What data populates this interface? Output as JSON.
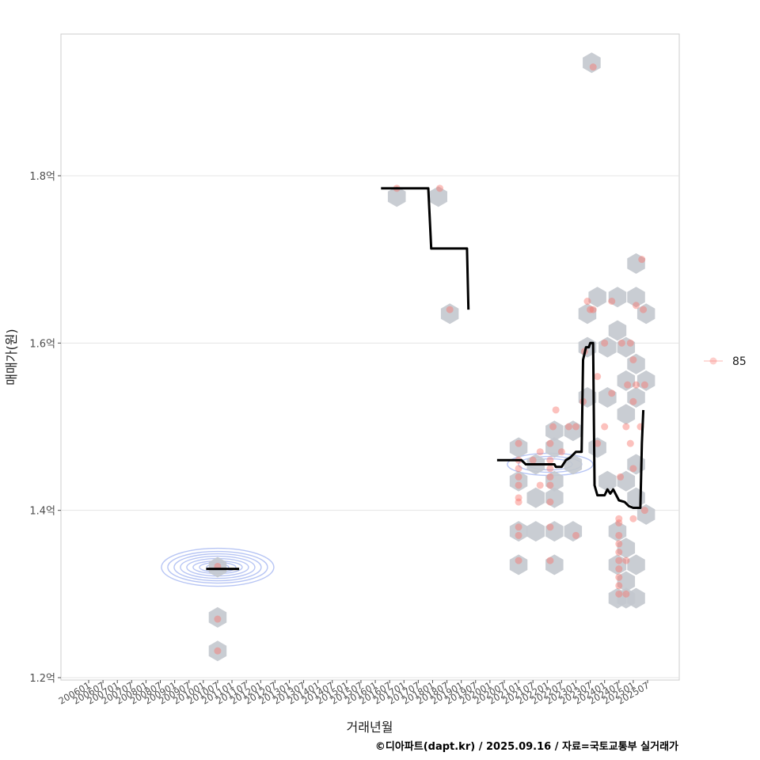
{
  "chart_data": {
    "type": "scatter",
    "xlabel": "거래년월",
    "ylabel": "매매가(원)",
    "caption": "©디아파트(dapt.kr) / 2025.09.16 / 자료=국토교통부 실거래가",
    "ylim": [
      1.2,
      1.96
    ],
    "y_ticks": [
      {
        "value": 1.2,
        "label": "1.2억"
      },
      {
        "value": 1.4,
        "label": "1.4억"
      },
      {
        "value": 1.6,
        "label": "1.6억"
      },
      {
        "value": 1.8,
        "label": "1.8억"
      }
    ],
    "x_ticks": [
      "200601",
      "200607",
      "200701",
      "200707",
      "200801",
      "200807",
      "200901",
      "200907",
      "201001",
      "201007",
      "201101",
      "201107",
      "201201",
      "201207",
      "201301",
      "201307",
      "201401",
      "201407",
      "201501",
      "201507",
      "201601",
      "201607",
      "201701",
      "201707",
      "201801",
      "201807",
      "201901",
      "201907",
      "202001",
      "202007",
      "202101",
      "202107",
      "202201",
      "202207",
      "202301",
      "202307",
      "202401",
      "202407",
      "202501",
      "202507"
    ],
    "legend": [
      {
        "label": "85",
        "color": "#f8766d"
      }
    ],
    "colors": {
      "points": "#f8766d",
      "hex": "#c3c8ce",
      "trend": "#000000",
      "density": "#9fb2f0",
      "grid": "#e5e5e5"
    },
    "scatter_points": [
      {
        "t": 2010.5,
        "v": 1.333
      },
      {
        "t": 2010.5,
        "v": 1.27
      },
      {
        "t": 2010.5,
        "v": 1.232
      },
      {
        "t": 2016.75,
        "v": 1.785
      },
      {
        "t": 2018.25,
        "v": 1.785
      },
      {
        "t": 2018.6,
        "v": 1.64
      },
      {
        "t": 2021.0,
        "v": 1.48
      },
      {
        "t": 2021.0,
        "v": 1.46
      },
      {
        "t": 2021.0,
        "v": 1.45
      },
      {
        "t": 2021.0,
        "v": 1.44
      },
      {
        "t": 2021.0,
        "v": 1.43
      },
      {
        "t": 2021.0,
        "v": 1.415
      },
      {
        "t": 2021.0,
        "v": 1.41
      },
      {
        "t": 2021.0,
        "v": 1.38
      },
      {
        "t": 2021.0,
        "v": 1.37
      },
      {
        "t": 2021.0,
        "v": 1.34
      },
      {
        "t": 2021.5,
        "v": 1.46
      },
      {
        "t": 2021.75,
        "v": 1.47
      },
      {
        "t": 2021.75,
        "v": 1.43
      },
      {
        "t": 2022.1,
        "v": 1.48
      },
      {
        "t": 2022.1,
        "v": 1.46
      },
      {
        "t": 2022.1,
        "v": 1.45
      },
      {
        "t": 2022.1,
        "v": 1.44
      },
      {
        "t": 2022.1,
        "v": 1.43
      },
      {
        "t": 2022.1,
        "v": 1.41
      },
      {
        "t": 2022.1,
        "v": 1.38
      },
      {
        "t": 2022.1,
        "v": 1.34
      },
      {
        "t": 2022.2,
        "v": 1.5
      },
      {
        "t": 2022.3,
        "v": 1.52
      },
      {
        "t": 2022.5,
        "v": 1.47
      },
      {
        "t": 2022.75,
        "v": 1.5
      },
      {
        "t": 2023.0,
        "v": 1.37
      },
      {
        "t": 2023.0,
        "v": 1.5
      },
      {
        "t": 2023.25,
        "v": 1.53
      },
      {
        "t": 2023.3,
        "v": 1.59
      },
      {
        "t": 2023.4,
        "v": 1.65
      },
      {
        "t": 2023.5,
        "v": 1.64
      },
      {
        "t": 2023.6,
        "v": 1.64
      },
      {
        "t": 2023.6,
        "v": 1.93
      },
      {
        "t": 2023.75,
        "v": 1.48
      },
      {
        "t": 2023.75,
        "v": 1.56
      },
      {
        "t": 2024.0,
        "v": 1.5
      },
      {
        "t": 2024.0,
        "v": 1.6
      },
      {
        "t": 2024.25,
        "v": 1.54
      },
      {
        "t": 2024.25,
        "v": 1.65
      },
      {
        "t": 2024.5,
        "v": 1.39
      },
      {
        "t": 2024.5,
        "v": 1.385
      },
      {
        "t": 2024.5,
        "v": 1.37
      },
      {
        "t": 2024.5,
        "v": 1.36
      },
      {
        "t": 2024.5,
        "v": 1.35
      },
      {
        "t": 2024.5,
        "v": 1.34
      },
      {
        "t": 2024.5,
        "v": 1.33
      },
      {
        "t": 2024.5,
        "v": 1.32
      },
      {
        "t": 2024.5,
        "v": 1.31
      },
      {
        "t": 2024.5,
        "v": 1.3
      },
      {
        "t": 2024.55,
        "v": 1.44
      },
      {
        "t": 2024.6,
        "v": 1.6
      },
      {
        "t": 2024.75,
        "v": 1.5
      },
      {
        "t": 2024.75,
        "v": 1.3
      },
      {
        "t": 2024.75,
        "v": 1.34
      },
      {
        "t": 2024.8,
        "v": 1.55
      },
      {
        "t": 2024.9,
        "v": 1.6
      },
      {
        "t": 2024.9,
        "v": 1.48
      },
      {
        "t": 2025.0,
        "v": 1.58
      },
      {
        "t": 2025.0,
        "v": 1.53
      },
      {
        "t": 2025.0,
        "v": 1.45
      },
      {
        "t": 2025.0,
        "v": 1.39
      },
      {
        "t": 2025.1,
        "v": 1.55
      },
      {
        "t": 2025.1,
        "v": 1.645
      },
      {
        "t": 2025.25,
        "v": 1.5
      },
      {
        "t": 2025.3,
        "v": 1.7
      },
      {
        "t": 2025.35,
        "v": 1.64
      },
      {
        "t": 2025.4,
        "v": 1.55
      },
      {
        "t": 2025.4,
        "v": 1.4
      }
    ],
    "hex_bins": [
      {
        "t": 2010.5,
        "v": 1.332
      },
      {
        "t": 2010.5,
        "v": 1.272
      },
      {
        "t": 2010.5,
        "v": 1.232
      },
      {
        "t": 2016.75,
        "v": 1.775
      },
      {
        "t": 2018.2,
        "v": 1.775
      },
      {
        "t": 2018.6,
        "v": 1.635
      },
      {
        "t": 2021.0,
        "v": 1.475
      },
      {
        "t": 2021.0,
        "v": 1.435
      },
      {
        "t": 2021.0,
        "v": 1.375
      },
      {
        "t": 2021.0,
        "v": 1.335
      },
      {
        "t": 2021.6,
        "v": 1.455
      },
      {
        "t": 2021.6,
        "v": 1.415
      },
      {
        "t": 2021.6,
        "v": 1.375
      },
      {
        "t": 2022.25,
        "v": 1.495
      },
      {
        "t": 2022.25,
        "v": 1.475
      },
      {
        "t": 2022.25,
        "v": 1.435
      },
      {
        "t": 2022.25,
        "v": 1.415
      },
      {
        "t": 2022.25,
        "v": 1.375
      },
      {
        "t": 2022.25,
        "v": 1.335
      },
      {
        "t": 2022.9,
        "v": 1.495
      },
      {
        "t": 2022.9,
        "v": 1.455
      },
      {
        "t": 2022.9,
        "v": 1.375
      },
      {
        "t": 2023.4,
        "v": 1.635
      },
      {
        "t": 2023.4,
        "v": 1.595
      },
      {
        "t": 2023.4,
        "v": 1.535
      },
      {
        "t": 2023.55,
        "v": 1.935
      },
      {
        "t": 2023.75,
        "v": 1.655
      },
      {
        "t": 2023.75,
        "v": 1.475
      },
      {
        "t": 2024.1,
        "v": 1.595
      },
      {
        "t": 2024.1,
        "v": 1.535
      },
      {
        "t": 2024.1,
        "v": 1.435
      },
      {
        "t": 2024.45,
        "v": 1.655
      },
      {
        "t": 2024.45,
        "v": 1.615
      },
      {
        "t": 2024.45,
        "v": 1.375
      },
      {
        "t": 2024.45,
        "v": 1.335
      },
      {
        "t": 2024.45,
        "v": 1.295
      },
      {
        "t": 2024.75,
        "v": 1.595
      },
      {
        "t": 2024.75,
        "v": 1.555
      },
      {
        "t": 2024.75,
        "v": 1.515
      },
      {
        "t": 2024.75,
        "v": 1.435
      },
      {
        "t": 2024.75,
        "v": 1.355
      },
      {
        "t": 2024.75,
        "v": 1.315
      },
      {
        "t": 2024.75,
        "v": 1.295
      },
      {
        "t": 2025.1,
        "v": 1.695
      },
      {
        "t": 2025.1,
        "v": 1.655
      },
      {
        "t": 2025.1,
        "v": 1.575
      },
      {
        "t": 2025.1,
        "v": 1.535
      },
      {
        "t": 2025.1,
        "v": 1.455
      },
      {
        "t": 2025.1,
        "v": 1.415
      },
      {
        "t": 2025.1,
        "v": 1.335
      },
      {
        "t": 2025.1,
        "v": 1.295
      },
      {
        "t": 2025.45,
        "v": 1.635
      },
      {
        "t": 2025.45,
        "v": 1.555
      },
      {
        "t": 2025.45,
        "v": 1.395
      }
    ],
    "trend_line": [
      [
        [
          2010.1,
          1.33
        ],
        [
          2011.25,
          1.33
        ]
      ],
      [
        [
          2016.2,
          1.785
        ],
        [
          2017.85,
          1.785
        ],
        [
          2017.95,
          1.713
        ],
        [
          2019.2,
          1.713
        ],
        [
          2019.25,
          1.64
        ]
      ],
      [
        [
          2020.25,
          1.46
        ],
        [
          2021.1,
          1.46
        ],
        [
          2021.25,
          1.455
        ],
        [
          2022.25,
          1.455
        ],
        [
          2022.3,
          1.452
        ],
        [
          2022.5,
          1.452
        ],
        [
          2022.65,
          1.46
        ],
        [
          2022.8,
          1.463
        ],
        [
          2023.0,
          1.47
        ],
        [
          2023.2,
          1.47
        ],
        [
          2023.25,
          1.58
        ],
        [
          2023.35,
          1.595
        ],
        [
          2023.45,
          1.595
        ],
        [
          2023.5,
          1.6
        ],
        [
          2023.6,
          1.6
        ],
        [
          2023.65,
          1.43
        ],
        [
          2023.75,
          1.418
        ],
        [
          2024.0,
          1.418
        ],
        [
          2024.1,
          1.425
        ],
        [
          2024.2,
          1.42
        ],
        [
          2024.3,
          1.425
        ],
        [
          2024.5,
          1.412
        ],
        [
          2024.7,
          1.41
        ],
        [
          2024.85,
          1.405
        ],
        [
          2025.0,
          1.403
        ],
        [
          2025.25,
          1.403
        ],
        [
          2025.3,
          1.48
        ],
        [
          2025.35,
          1.52
        ]
      ]
    ],
    "density_contours": [
      {
        "t": 2010.5,
        "v": 1.332,
        "levels": [
          [
            71,
            24
          ],
          [
            63,
            20
          ],
          [
            55,
            17
          ],
          [
            47,
            14
          ],
          [
            39,
            11
          ],
          [
            31,
            8
          ],
          [
            23,
            6
          ],
          [
            14,
            4
          ]
        ]
      },
      {
        "t": 2022.1,
        "v": 1.455,
        "levels": [
          [
            54,
            14
          ],
          [
            40,
            10
          ],
          [
            28,
            7
          ]
        ]
      }
    ]
  }
}
